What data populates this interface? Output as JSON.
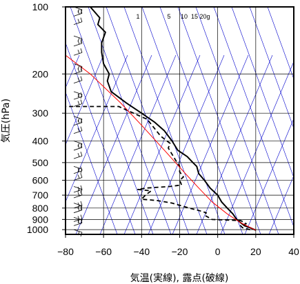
{
  "chart_data": {
    "type": "line",
    "xlabel": "気温(実線), 露点(破線)",
    "ylabel": "気圧(hPa)",
    "xlim": [
      -80,
      40
    ],
    "ylim": [
      1050,
      100
    ],
    "y_scale": "log",
    "x_ticks": [
      "−80",
      "−60",
      "−40",
      "−20",
      "0",
      "20",
      "40"
    ],
    "x_tick_values": [
      -80,
      -60,
      -40,
      -20,
      0,
      20,
      40
    ],
    "y_ticks": [
      "100",
      "200",
      "300",
      "400",
      "500",
      "600",
      "700",
      "800",
      "900",
      "1000"
    ],
    "y_tick_values": [
      100,
      200,
      300,
      400,
      500,
      600,
      700,
      800,
      900,
      1000
    ],
    "mixing_ratio_labels": [
      "1",
      "5",
      "10",
      "15",
      "20g"
    ],
    "mixing_ratio_values": [
      1,
      5,
      10,
      15,
      20
    ],
    "grid": true,
    "colors": {
      "temperature": "#000000",
      "dewpoint": "#000000",
      "parcel": "#ff0000",
      "isotherm": "#0000cc",
      "dry_adiabat": "#0000cc",
      "grid": "#000000"
    },
    "series": [
      {
        "style": "solid",
        "points": [
          [
            20,
            1005
          ],
          [
            17,
            980
          ],
          [
            14,
            960
          ],
          [
            12,
            930
          ],
          [
            10,
            900
          ],
          [
            8,
            850
          ],
          [
            5,
            800
          ],
          [
            2,
            750
          ],
          [
            0,
            700
          ],
          [
            -4,
            650
          ],
          [
            -7,
            600
          ],
          [
            -10,
            560
          ],
          [
            -11,
            520
          ],
          [
            -13,
            500
          ],
          [
            -16,
            470
          ],
          [
            -21,
            440
          ],
          [
            -24,
            400
          ],
          [
            -28,
            360
          ],
          [
            -33,
            330
          ],
          [
            -40,
            300
          ],
          [
            -48,
            270
          ],
          [
            -56,
            240
          ],
          [
            -58,
            215
          ],
          [
            -57,
            200
          ],
          [
            -60,
            180
          ],
          [
            -61,
            160
          ],
          [
            -61,
            145
          ],
          [
            -59,
            130
          ],
          [
            -63,
            120
          ],
          [
            -62,
            112
          ],
          [
            -67,
            100
          ]
        ]
      },
      {
        "style": "dashed",
        "points": [
          [
            17,
            1000
          ],
          [
            13,
            980
          ],
          [
            12,
            960
          ],
          [
            15,
            940
          ],
          [
            12,
            910
          ],
          [
            -3,
            900
          ],
          [
            -5,
            880
          ],
          [
            -7,
            860
          ],
          [
            -6,
            840
          ],
          [
            -10,
            820
          ],
          [
            -15,
            800
          ],
          [
            -24,
            760
          ],
          [
            -32,
            740
          ],
          [
            -40,
            730
          ],
          [
            -38,
            700
          ],
          [
            -35,
            670
          ],
          [
            -42,
            660
          ],
          [
            -37,
            650
          ],
          [
            -25,
            640
          ],
          [
            -19,
            630
          ],
          [
            -20,
            600
          ],
          [
            -18,
            580
          ],
          [
            -20,
            550
          ],
          [
            -20,
            520
          ],
          [
            -22,
            490
          ],
          [
            -26,
            430
          ],
          [
            -25,
            410
          ],
          [
            -30,
            380
          ],
          [
            -37,
            320
          ],
          [
            -52,
            280
          ],
          [
            -80,
            280
          ]
        ]
      },
      {
        "style": "solid",
        "points": [
          [
            20,
            1005
          ],
          [
            12,
            930
          ],
          [
            5,
            850
          ],
          [
            -3,
            750
          ],
          [
            -10,
            650
          ],
          [
            -17,
            560
          ],
          [
            -27,
            450
          ],
          [
            -40,
            340
          ],
          [
            -51,
            270
          ],
          [
            -67,
            200
          ],
          [
            -82,
            160
          ]
        ]
      }
    ]
  }
}
